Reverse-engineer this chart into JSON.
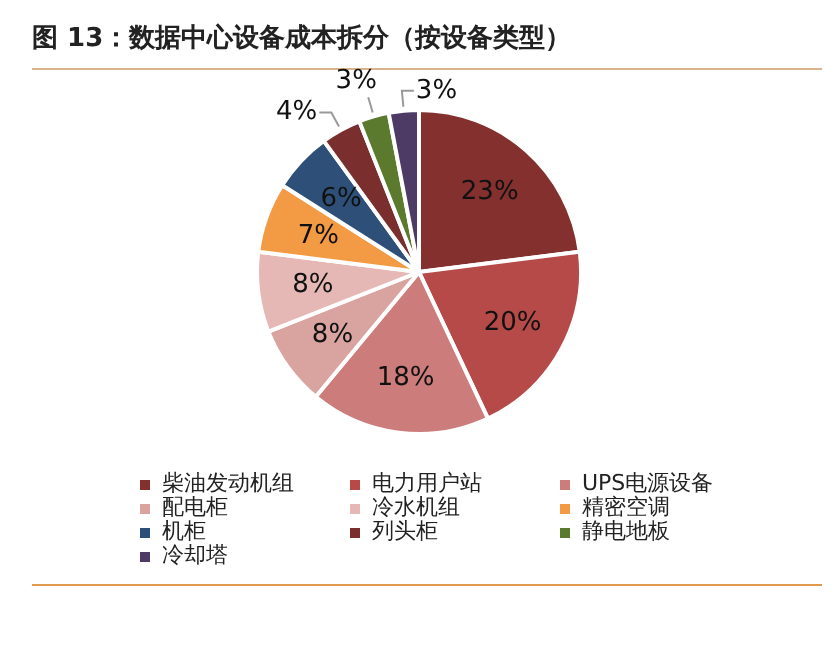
{
  "chart_data": {
    "type": "pie",
    "title": "图 13：数据中心设备成本拆分（按设备类型）",
    "categories": [
      "柴油发动机组",
      "电力用户站",
      "UPS电源设备",
      "配电柜",
      "冷水机组",
      "精密空调",
      "机柜",
      "列头柜",
      "静电地板",
      "冷却塔"
    ],
    "values": [
      23,
      20,
      18,
      8,
      8,
      7,
      6,
      4,
      3,
      3
    ],
    "value_labels": [
      "23%",
      "20%",
      "18%",
      "8%",
      "8%",
      "7%",
      "6%",
      "4%",
      "3%",
      "3%"
    ],
    "colors": [
      "#84302f",
      "#b54a48",
      "#cc7c7b",
      "#d9a3a0",
      "#e5b8b6",
      "#f39a45",
      "#2e5078",
      "#7a2e2e",
      "#5b7a2d",
      "#4d3b66"
    ],
    "legend": "bottom"
  }
}
